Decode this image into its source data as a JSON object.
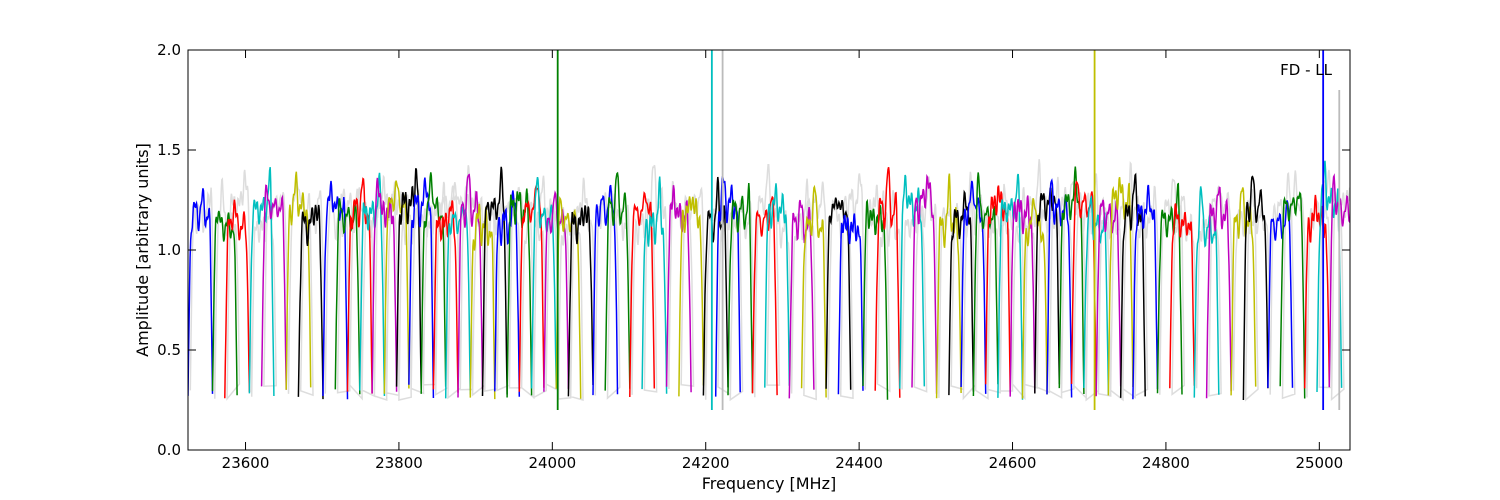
{
  "chart_data": {
    "type": "line",
    "title": "",
    "xlabel": "Frequency [MHz]",
    "ylabel": "Amplitude [arbitrary units]",
    "annotation": "FD - LL",
    "annotation_position": "top-right",
    "xlim": [
      23525,
      25040
    ],
    "ylim": [
      0.0,
      2.0
    ],
    "xticks": [
      23600,
      23800,
      24000,
      24200,
      24400,
      24600,
      24800,
      25000
    ],
    "yticks": [
      0.0,
      0.5,
      1.0,
      1.5,
      2.0
    ],
    "xtick_labels": [
      "23600",
      "23800",
      "24000",
      "24200",
      "24400",
      "24600",
      "24800",
      "25000"
    ],
    "ytick_labels": [
      "0.0",
      "0.5",
      "1.0",
      "1.5",
      "2.0"
    ],
    "grid": false,
    "legend": "none",
    "channel_width_mhz": 32,
    "channel_step_mhz": 16,
    "color_cycle": [
      "#0000ff",
      "#008000",
      "#ff0000",
      "#00bfbf",
      "#bf00bf",
      "#bfbf00",
      "#000000"
    ],
    "background_line_color": "#bbbbbb",
    "channel_starts_mhz": [
      23525,
      23557,
      23573,
      23605,
      23621,
      23653,
      23669,
      23701,
      23717,
      23733,
      23749,
      23765,
      23781,
      23797,
      23813,
      23829,
      23845,
      23861,
      23877,
      23893,
      23909,
      23925,
      23941,
      23957,
      23973,
      23989,
      24005,
      24021,
      24053,
      24069,
      24101,
      24117,
      24149,
      24165,
      24197,
      24213,
      24229,
      24261,
      24277,
      24309,
      24325,
      24357,
      24373,
      24405,
      24421,
      24453,
      24469,
      24501,
      24517,
      24533,
      24549,
      24565,
      24581,
      24597,
      24613,
      24629,
      24645,
      24661,
      24677,
      24693,
      24709,
      24725,
      24741,
      24757,
      24789,
      24805,
      24837,
      24853,
      24885,
      24901,
      24933,
      24949,
      24981,
      24997,
      25013
    ],
    "spikes": [
      {
        "x": 24007,
        "y_top": 2.0,
        "color": "#008000"
      },
      {
        "x": 24208,
        "y_top": 2.0,
        "color": "#00bfbf"
      },
      {
        "x": 24222,
        "y_top": 2.0,
        "color": "#bbbbbb"
      },
      {
        "x": 24707,
        "y_top": 2.0,
        "color": "#bfbf00"
      },
      {
        "x": 25005,
        "y_top": 2.0,
        "color": "#0000ff"
      },
      {
        "x": 25026,
        "y_top": 1.8,
        "color": "#bbbbbb"
      }
    ]
  }
}
